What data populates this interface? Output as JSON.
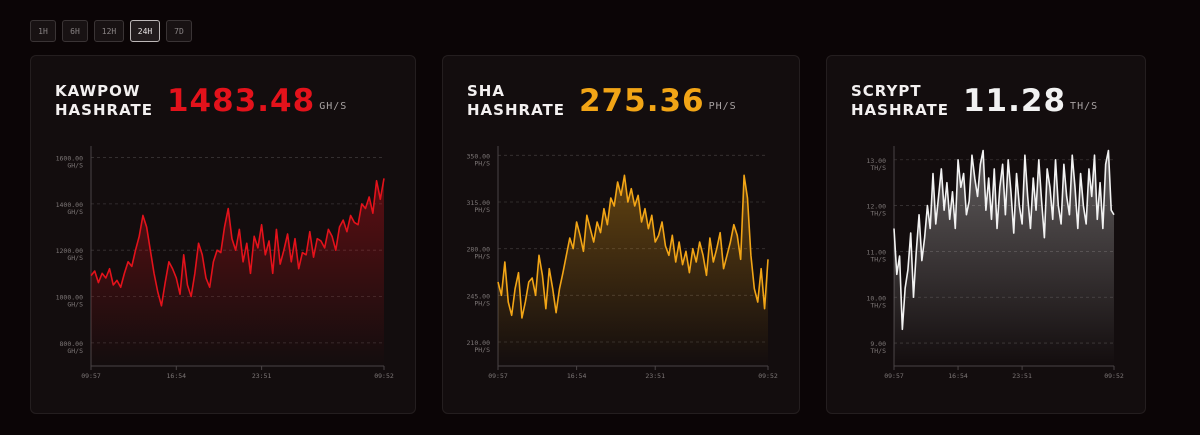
{
  "time_ranges": [
    {
      "label": "1H"
    },
    {
      "label": "6H"
    },
    {
      "label": "12H"
    },
    {
      "label": "24H",
      "active": true
    },
    {
      "label": "7D"
    }
  ],
  "chart_data": [
    {
      "type": "area",
      "title": "KAWPOW HASHRATE",
      "current_value": 1483.48,
      "unit": "GH/S",
      "color": "#e3121b",
      "categories": [
        "09:57",
        null,
        null,
        null,
        null,
        null,
        null,
        null,
        null,
        null,
        null,
        null,
        null,
        null,
        null,
        null,
        null,
        null,
        null,
        null,
        null,
        null,
        null,
        "16:54",
        null,
        null,
        null,
        null,
        null,
        null,
        null,
        null,
        null,
        null,
        null,
        null,
        null,
        null,
        null,
        null,
        null,
        null,
        null,
        null,
        null,
        null,
        "23:51",
        null,
        null,
        null,
        null,
        null,
        null,
        null,
        null,
        null,
        null,
        null,
        null,
        null,
        null,
        null,
        null,
        null,
        null,
        null,
        null,
        null,
        null,
        null,
        null,
        null,
        null,
        null,
        null,
        null,
        null,
        null,
        null,
        "09:52"
      ],
      "values": [
        1090,
        1110,
        1060,
        1100,
        1080,
        1120,
        1050,
        1070,
        1040,
        1100,
        1150,
        1130,
        1200,
        1260,
        1350,
        1300,
        1200,
        1100,
        1020,
        960,
        1060,
        1150,
        1120,
        1080,
        1010,
        1180,
        1050,
        1000,
        1100,
        1230,
        1180,
        1080,
        1040,
        1150,
        1200,
        1190,
        1300,
        1380,
        1250,
        1200,
        1290,
        1150,
        1230,
        1100,
        1260,
        1210,
        1310,
        1180,
        1240,
        1100,
        1290,
        1140,
        1200,
        1270,
        1150,
        1250,
        1120,
        1190,
        1180,
        1280,
        1170,
        1250,
        1240,
        1210,
        1290,
        1260,
        1200,
        1300,
        1330,
        1280,
        1350,
        1320,
        1310,
        1400,
        1380,
        1430,
        1360,
        1500,
        1420,
        1510
      ],
      "ylim": [
        700,
        1650
      ],
      "yticks": [
        {
          "value": 800,
          "label": "800.00"
        },
        {
          "value": 1000,
          "label": "1000.00"
        },
        {
          "value": 1200,
          "label": "1200.00"
        },
        {
          "value": 1400,
          "label": "1400.00"
        },
        {
          "value": 1600,
          "label": "1600.00"
        }
      ],
      "grid": true
    },
    {
      "type": "area",
      "title": "SHA HASHRATE",
      "current_value": 275.36,
      "unit": "PH/S",
      "color": "#f2a516",
      "categories": [
        "09:57",
        null,
        null,
        null,
        null,
        null,
        null,
        null,
        null,
        null,
        null,
        null,
        null,
        null,
        null,
        null,
        null,
        null,
        null,
        null,
        null,
        null,
        null,
        "16:54",
        null,
        null,
        null,
        null,
        null,
        null,
        null,
        null,
        null,
        null,
        null,
        null,
        null,
        null,
        null,
        null,
        null,
        null,
        null,
        null,
        null,
        null,
        "23:51",
        null,
        null,
        null,
        null,
        null,
        null,
        null,
        null,
        null,
        null,
        null,
        null,
        null,
        null,
        null,
        null,
        null,
        null,
        null,
        null,
        null,
        null,
        null,
        null,
        null,
        null,
        null,
        null,
        null,
        null,
        null,
        null,
        "09:52"
      ],
      "values": [
        255,
        245,
        270,
        240,
        230,
        250,
        262,
        228,
        240,
        255,
        258,
        245,
        275,
        260,
        235,
        265,
        250,
        232,
        250,
        262,
        275,
        288,
        280,
        300,
        290,
        278,
        305,
        295,
        285,
        300,
        292,
        310,
        298,
        318,
        312,
        330,
        320,
        335,
        315,
        325,
        312,
        320,
        300,
        310,
        295,
        305,
        285,
        290,
        300,
        282,
        275,
        290,
        270,
        285,
        268,
        278,
        262,
        280,
        270,
        285,
        275,
        260,
        288,
        270,
        280,
        292,
        265,
        275,
        285,
        298,
        290,
        272,
        335,
        318,
        275,
        250,
        240,
        265,
        235,
        272
      ],
      "ylim": [
        192,
        357
      ],
      "yticks": [
        {
          "value": 210,
          "label": "210.00"
        },
        {
          "value": 245,
          "label": "245.00"
        },
        {
          "value": 280,
          "label": "280.00"
        },
        {
          "value": 315,
          "label": "315.00"
        },
        {
          "value": 350,
          "label": "350.00"
        }
      ],
      "grid": true
    },
    {
      "type": "area",
      "title": "SCRYPT HASHRATE",
      "current_value": 11.28,
      "unit": "TH/S",
      "color": "#f2f2f2",
      "categories": [
        "09:57",
        null,
        null,
        null,
        null,
        null,
        null,
        null,
        null,
        null,
        null,
        null,
        null,
        null,
        null,
        null,
        null,
        null,
        null,
        null,
        null,
        null,
        null,
        "16:54",
        null,
        null,
        null,
        null,
        null,
        null,
        null,
        null,
        null,
        null,
        null,
        null,
        null,
        null,
        null,
        null,
        null,
        null,
        null,
        null,
        null,
        null,
        "23:51",
        null,
        null,
        null,
        null,
        null,
        null,
        null,
        null,
        null,
        null,
        null,
        null,
        null,
        null,
        null,
        null,
        null,
        null,
        null,
        null,
        null,
        null,
        null,
        null,
        null,
        null,
        null,
        null,
        null,
        null,
        null,
        null,
        "09:52"
      ],
      "values": [
        11.5,
        10.5,
        10.9,
        9.3,
        10.2,
        10.6,
        11.4,
        10.0,
        11.0,
        11.8,
        10.8,
        11.3,
        12.0,
        11.5,
        12.7,
        11.6,
        12.2,
        12.8,
        11.9,
        12.5,
        11.7,
        12.3,
        11.5,
        13.0,
        12.4,
        12.7,
        11.8,
        12.1,
        13.1,
        12.6,
        12.2,
        12.9,
        13.2,
        11.9,
        12.6,
        11.7,
        12.8,
        11.5,
        12.4,
        12.9,
        11.8,
        13.0,
        12.3,
        11.4,
        12.7,
        12.0,
        11.6,
        13.1,
        12.2,
        11.5,
        12.6,
        11.9,
        13.0,
        12.1,
        11.3,
        12.8,
        12.4,
        11.7,
        13.0,
        12.0,
        11.6,
        12.9,
        12.2,
        11.8,
        13.1,
        12.4,
        11.5,
        12.7,
        12.0,
        11.6,
        12.8,
        12.2,
        13.1,
        11.7,
        12.5,
        11.5,
        12.9,
        13.2,
        11.9,
        11.8
      ],
      "ylim": [
        8.5,
        13.3
      ],
      "yticks": [
        {
          "value": 9,
          "label": "9.00"
        },
        {
          "value": 10,
          "label": "10.00"
        },
        {
          "value": 11,
          "label": "11.00"
        },
        {
          "value": 12,
          "label": "12.00"
        },
        {
          "value": 13,
          "label": "13.00"
        }
      ],
      "grid": true
    }
  ]
}
